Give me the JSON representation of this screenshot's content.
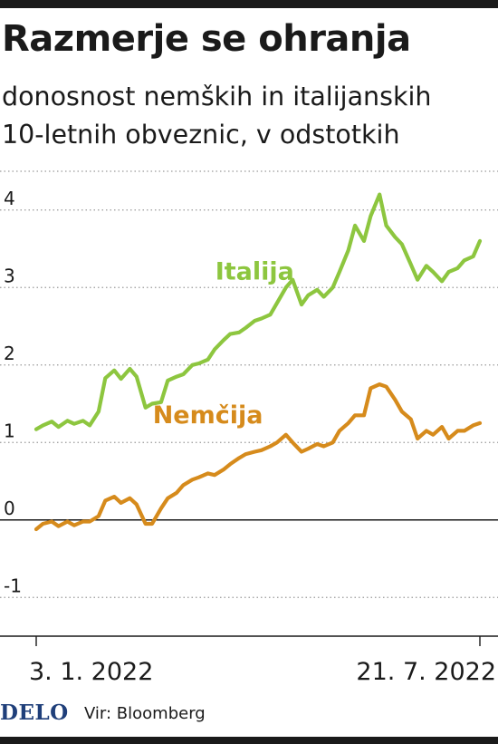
{
  "header": {
    "title": "Razmerje se ohranja",
    "subtitle_line1": "donosnost nemških in italijanskih",
    "subtitle_line2": "10-letnih obveznic, v odstotkih"
  },
  "footer": {
    "logo": "DELO",
    "source": "Vir: Bloomberg"
  },
  "chart_data": {
    "type": "line",
    "title": "Razmerje se ohranja",
    "subtitle": "donosnost nemških in italijanskih 10-letnih obveznic, v odstotkih",
    "xlabel": "",
    "ylabel": "",
    "x_range": [
      "2022-01-03",
      "2022-07-21"
    ],
    "x_tick_labels": [
      "3. 1. 2022",
      "21. 7. 2022"
    ],
    "ylim": [
      -1.5,
      4.5
    ],
    "y_ticks": [
      -1,
      0,
      1,
      2,
      3,
      4
    ],
    "y_tick_labels": [
      "-1",
      "0",
      "1",
      "2",
      "3",
      "4"
    ],
    "grid": "dotted-horizontal",
    "zero_line": true,
    "series": [
      {
        "name": "Italija",
        "color": "#8dc63f",
        "x": [
          "2022-01-03",
          "2022-01-06",
          "2022-01-10",
          "2022-01-13",
          "2022-01-17",
          "2022-01-20",
          "2022-01-24",
          "2022-01-27",
          "2022-01-31",
          "2022-02-03",
          "2022-02-07",
          "2022-02-10",
          "2022-02-14",
          "2022-02-17",
          "2022-02-21",
          "2022-02-24",
          "2022-02-28",
          "2022-03-03",
          "2022-03-07",
          "2022-03-10",
          "2022-03-14",
          "2022-03-17",
          "2022-03-21",
          "2022-03-24",
          "2022-03-28",
          "2022-03-31",
          "2022-04-04",
          "2022-04-07",
          "2022-04-11",
          "2022-04-14",
          "2022-04-18",
          "2022-04-21",
          "2022-04-25",
          "2022-04-28",
          "2022-05-02",
          "2022-05-05",
          "2022-05-09",
          "2022-05-12",
          "2022-05-16",
          "2022-05-19",
          "2022-05-23",
          "2022-05-26",
          "2022-05-30",
          "2022-06-02",
          "2022-06-06",
          "2022-06-09",
          "2022-06-13",
          "2022-06-16",
          "2022-06-20",
          "2022-06-23",
          "2022-06-27",
          "2022-06-30",
          "2022-07-04",
          "2022-07-07",
          "2022-07-11",
          "2022-07-14",
          "2022-07-18",
          "2022-07-21"
        ],
        "values": [
          1.17,
          1.22,
          1.27,
          1.2,
          1.28,
          1.24,
          1.28,
          1.22,
          1.4,
          1.83,
          1.93,
          1.82,
          1.95,
          1.85,
          1.45,
          1.5,
          1.52,
          1.8,
          1.85,
          1.88,
          2.0,
          2.02,
          2.07,
          2.2,
          2.32,
          2.4,
          2.42,
          2.48,
          2.57,
          2.6,
          2.65,
          2.8,
          3.0,
          3.1,
          2.78,
          2.9,
          2.97,
          2.88,
          3.0,
          3.2,
          3.48,
          3.8,
          3.6,
          3.92,
          4.2,
          3.8,
          3.65,
          3.56,
          3.3,
          3.1,
          3.28,
          3.2,
          3.08,
          3.2,
          3.25,
          3.35,
          3.4,
          3.6
        ]
      },
      {
        "name": "Nemčija",
        "color": "#d68b1c",
        "x": [
          "2022-01-03",
          "2022-01-06",
          "2022-01-10",
          "2022-01-13",
          "2022-01-17",
          "2022-01-20",
          "2022-01-24",
          "2022-01-27",
          "2022-01-31",
          "2022-02-03",
          "2022-02-07",
          "2022-02-10",
          "2022-02-14",
          "2022-02-17",
          "2022-02-21",
          "2022-02-24",
          "2022-02-28",
          "2022-03-03",
          "2022-03-07",
          "2022-03-10",
          "2022-03-14",
          "2022-03-17",
          "2022-03-21",
          "2022-03-24",
          "2022-03-28",
          "2022-03-31",
          "2022-04-04",
          "2022-04-07",
          "2022-04-11",
          "2022-04-14",
          "2022-04-18",
          "2022-04-21",
          "2022-04-25",
          "2022-04-28",
          "2022-05-02",
          "2022-05-05",
          "2022-05-09",
          "2022-05-12",
          "2022-05-16",
          "2022-05-19",
          "2022-05-23",
          "2022-05-26",
          "2022-05-30",
          "2022-06-02",
          "2022-06-06",
          "2022-06-09",
          "2022-06-13",
          "2022-06-16",
          "2022-06-20",
          "2022-06-23",
          "2022-06-27",
          "2022-06-30",
          "2022-07-04",
          "2022-07-07",
          "2022-07-11",
          "2022-07-14",
          "2022-07-18",
          "2022-07-21"
        ],
        "values": [
          -0.12,
          -0.05,
          -0.02,
          -0.08,
          -0.02,
          -0.07,
          -0.02,
          -0.02,
          0.05,
          0.25,
          0.3,
          0.22,
          0.28,
          0.2,
          -0.05,
          -0.05,
          0.15,
          0.28,
          0.35,
          0.45,
          0.52,
          0.55,
          0.6,
          0.58,
          0.65,
          0.72,
          0.8,
          0.85,
          0.88,
          0.9,
          0.95,
          1.0,
          1.1,
          1.0,
          0.88,
          0.92,
          0.98,
          0.95,
          1.0,
          1.15,
          1.25,
          1.35,
          1.35,
          1.7,
          1.75,
          1.72,
          1.55,
          1.4,
          1.3,
          1.05,
          1.15,
          1.1,
          1.2,
          1.05,
          1.15,
          1.15,
          1.22,
          1.25
        ]
      }
    ],
    "annotations": [
      {
        "text": "Italija",
        "series": "Italija",
        "x": "2022-04-11",
        "y": 3.1
      },
      {
        "text": "Nemčija",
        "series": "Nemčija",
        "x": "2022-03-21",
        "y": 1.25
      }
    ]
  }
}
